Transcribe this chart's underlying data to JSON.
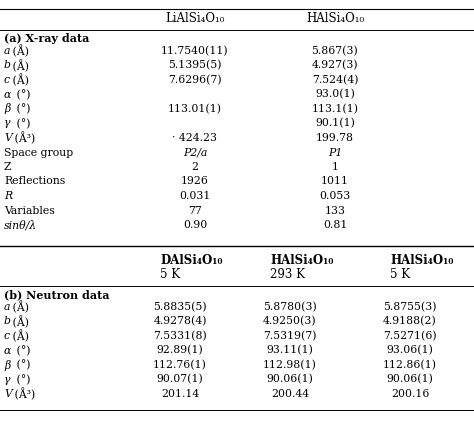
{
  "bg_color": "#ffffff",
  "header1_col2": "LiAlSi₄O₁₀",
  "header1_col3": "HAlSi₄O₁₀",
  "section_a_title": "(a) X-ray data",
  "rows_a": [
    [
      "a (Å)",
      "11.7540(11)",
      "5.867(3)"
    ],
    [
      "b (Å)",
      "5.1395(5)",
      "4.927(3)"
    ],
    [
      "c (Å)",
      "7.6296(7)",
      "7.524(4)"
    ],
    [
      "α (°)",
      "",
      "93.0(1)"
    ],
    [
      "β (°)",
      "113.01(1)",
      "113.1(1)"
    ],
    [
      "γ (°)",
      "",
      "90.1(1)"
    ],
    [
      "V (Å³)",
      "· 424.23",
      "199.78"
    ],
    [
      "Space group",
      "P2/a",
      "P1"
    ],
    [
      "Z",
      "2",
      "1"
    ],
    [
      "Reflections",
      "1926",
      "1011"
    ],
    [
      "R",
      "0.031",
      "0.053"
    ],
    [
      "Variables",
      "77",
      "133"
    ],
    [
      "sinθ/λ",
      "0.90",
      "0.81"
    ]
  ],
  "header2_col2": "DAlSi₄O₁₀",
  "header2_col2b": "5 K",
  "header2_col3": "HAlSi₄O₁₀",
  "header2_col3b": "293 K",
  "header2_col4": "HAlSi₄O₁₀",
  "header2_col4b": "5 K",
  "section_b_title": "(b) Neutron data",
  "rows_b": [
    [
      "a (Å)",
      "5.8835(5)",
      "5.8780(3)",
      "5.8755(3)"
    ],
    [
      "b (Å)",
      "4.9278(4)",
      "4.9250(3)",
      "4.9188(2)"
    ],
    [
      "c (Å)",
      "7.5331(8)",
      "7.5319(7)",
      "7.5271(6)"
    ],
    [
      "α (°)",
      "92.89(1)",
      "93.11(1)",
      "93.06(1)"
    ],
    [
      "β (°)",
      "112.76(1)",
      "112.98(1)",
      "112.86(1)"
    ],
    [
      "γ (°)",
      "90.07(1)",
      "90.06(1)",
      "90.06(1)"
    ],
    [
      "V (Å³)",
      "201.14",
      "200.44",
      "200.16"
    ]
  ]
}
